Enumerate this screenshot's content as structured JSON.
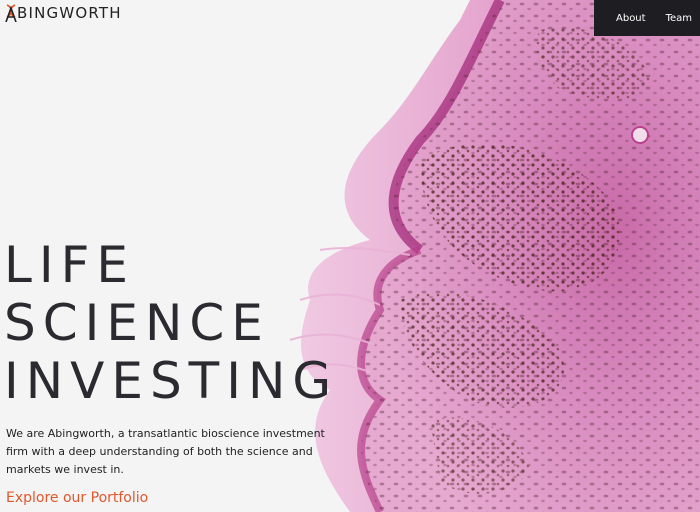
{
  "brand": {
    "logo_text": "BINGWORTH",
    "logo_initial": "A",
    "accent_color": "#e0572b"
  },
  "nav": {
    "items": [
      {
        "label": "About"
      },
      {
        "label": "Team"
      }
    ]
  },
  "hero": {
    "headline_lines": [
      "LIFE",
      "SCIENCE",
      "INVESTING"
    ],
    "intro": "We are Abingworth, a transatlantic bioscience investment firm with a deep understanding of both the science and markets we invest in.",
    "cta_label": "Explore our Portfolio",
    "image_subject": "histology-tissue-image"
  }
}
